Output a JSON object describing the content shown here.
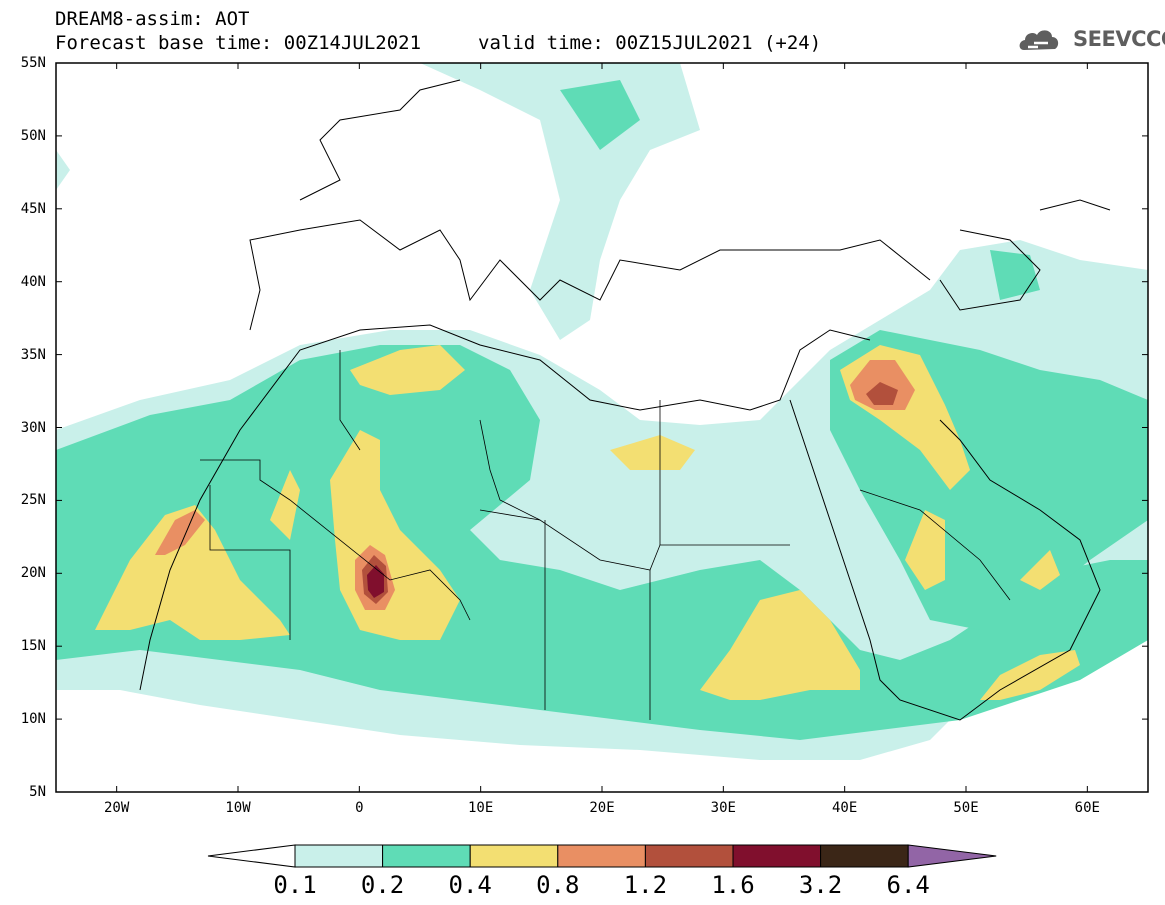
{
  "header": {
    "line1": "DREAM8-assim: AOT",
    "line2": "Forecast base time: 00Z14JUL2021",
    "valid": "valid time: 00Z15JUL2021 (+24)"
  },
  "logo": {
    "text": "SEEVCCC",
    "icon": "cloud-icon"
  },
  "map": {
    "lon_range": [
      -25,
      65
    ],
    "lat_range": [
      5,
      55
    ],
    "lat_labels": [
      "55N",
      "50N",
      "45N",
      "40N",
      "35N",
      "30N",
      "25N",
      "20N",
      "15N",
      "10N",
      "5N"
    ],
    "lon_labels": [
      "20W",
      "10W",
      "0",
      "10E",
      "20E",
      "30E",
      "40E",
      "50E",
      "60E"
    ]
  },
  "colorbar": {
    "levels": [
      "0.1",
      "0.2",
      "0.4",
      "0.8",
      "1.2",
      "1.6",
      "3.2",
      "6.4"
    ],
    "colors": [
      "#c9f0ea",
      "#5fdcb6",
      "#f3df72",
      "#e98f63",
      "#b2503c",
      "#800f2d",
      "#3b2617",
      "#9265a6"
    ]
  }
}
